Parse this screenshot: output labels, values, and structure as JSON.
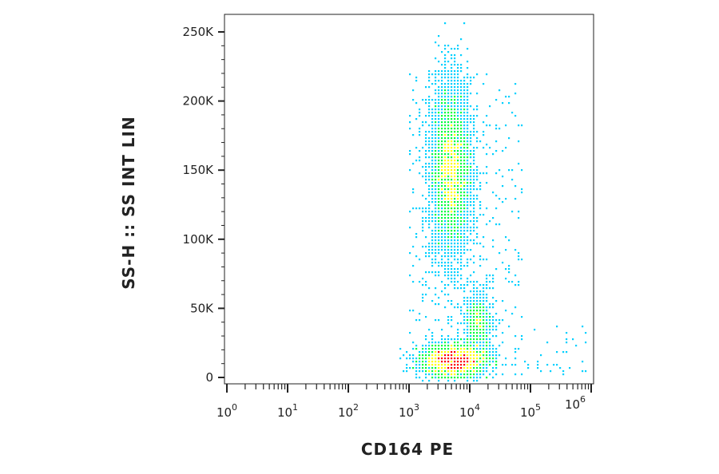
{
  "chart_data": {
    "type": "scatter",
    "xlabel": "CD164 PE",
    "ylabel": "SS-H :: SS INT LIN",
    "x_scale": "log",
    "xlim": [
      1,
      1000000
    ],
    "ylim": [
      -5000,
      262144
    ],
    "y_ticks": [
      {
        "value": 0,
        "label": "0"
      },
      {
        "value": 50000,
        "label": "50K"
      },
      {
        "value": 100000,
        "label": "100K"
      },
      {
        "value": 150000,
        "label": "150K"
      },
      {
        "value": 200000,
        "label": "200K"
      },
      {
        "value": 250000,
        "label": "250K"
      }
    ],
    "x_ticks": [
      {
        "value": 1,
        "base": "10",
        "exp": "0"
      },
      {
        "value": 10,
        "base": "10",
        "exp": "1"
      },
      {
        "value": 100,
        "base": "10",
        "exp": "2"
      },
      {
        "value": 1000,
        "base": "10",
        "exp": "3"
      },
      {
        "value": 10000,
        "base": "10",
        "exp": "4"
      },
      {
        "value": 100000,
        "base": "10",
        "exp": "5"
      },
      {
        "value": 1000000,
        "base": "10",
        "exp": "6"
      }
    ],
    "populations": [
      {
        "x_center": 5000,
        "y_center": 150000,
        "x_spread_log": 0.17,
        "y_spread": 32000,
        "points": 5200
      },
      {
        "x_center": 5500,
        "y_center": 12000,
        "x_spread_log": 0.28,
        "y_spread": 6000,
        "points": 4200
      },
      {
        "x_center": 14000,
        "y_center": 38000,
        "x_spread_log": 0.12,
        "y_spread": 12000,
        "points": 900
      }
    ],
    "grid": false,
    "legend": "none",
    "colors": {
      "low": "#0000ff",
      "mid_low": "#00d0ff",
      "mid": "#00ff40",
      "mid_high": "#ffff00",
      "high": "#ff0000"
    }
  }
}
